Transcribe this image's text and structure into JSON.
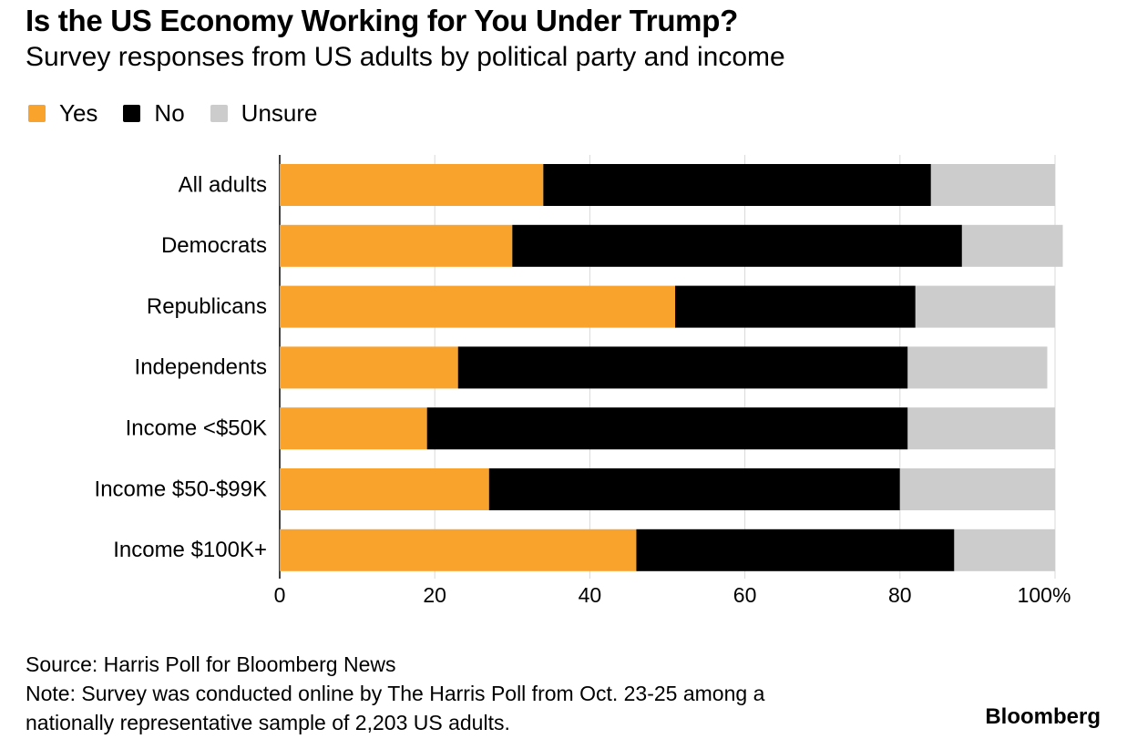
{
  "title": "Is the US Economy Working for You Under Trump?",
  "subtitle": "Survey responses from US adults by political party and income",
  "legend": [
    {
      "label": "Yes",
      "color": "#f9a22c"
    },
    {
      "label": "No",
      "color": "#000000"
    },
    {
      "label": "Unsure",
      "color": "#cccccc"
    }
  ],
  "footer": {
    "source": "Source: Harris Poll for Bloomberg News",
    "note_line1": "Note: Survey was conducted online by The Harris Poll from Oct. 23-25 among a",
    "note_line2": "nationally representative sample of 2,203 US adults.",
    "brand": "Bloomberg"
  },
  "chart_data": {
    "type": "bar",
    "orientation": "horizontal",
    "stacked": true,
    "categories": [
      "All adults",
      "Democrats",
      "Republicans",
      "Independents",
      "Income <$50K",
      "Income $50-$99K",
      "Income $100K+"
    ],
    "series": [
      {
        "name": "Yes",
        "color": "#f9a22c",
        "values": [
          34,
          30,
          51,
          23,
          19,
          27,
          46
        ]
      },
      {
        "name": "No",
        "color": "#000000",
        "values": [
          50,
          58,
          31,
          58,
          62,
          53,
          41
        ]
      },
      {
        "name": "Unsure",
        "color": "#cccccc",
        "values": [
          16,
          13,
          18,
          18,
          19,
          20,
          13
        ]
      }
    ],
    "xlim": [
      0,
      100
    ],
    "xticks": [
      "0",
      "20",
      "40",
      "60",
      "80",
      "100%"
    ],
    "grid": true,
    "legend_position": "top-left",
    "xlabel": "",
    "ylabel": ""
  }
}
